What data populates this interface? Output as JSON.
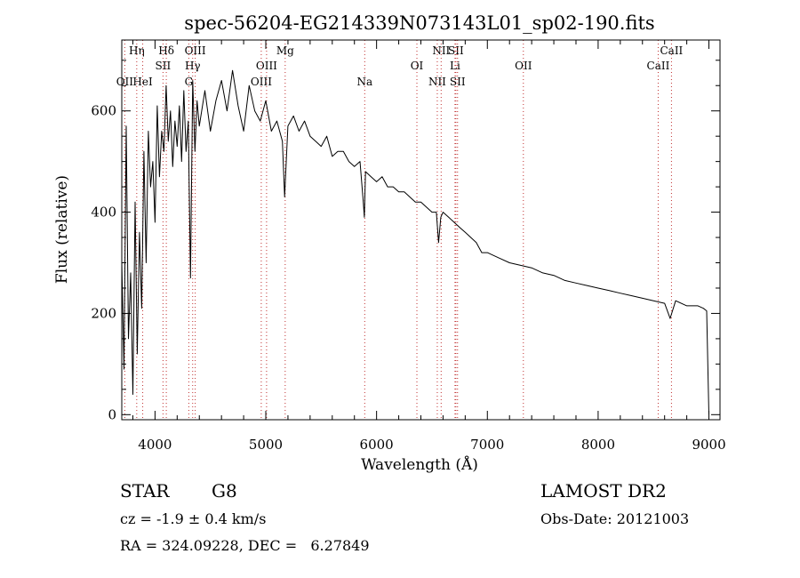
{
  "chart_data": {
    "type": "line",
    "title": "spec-56204-EG214339N073143L01_sp02-190.fits",
    "xlabel": "Wavelength (Å)",
    "ylabel": "Flux (relative)",
    "xlim": [
      3700,
      9100
    ],
    "ylim": [
      -10,
      740
    ],
    "xticks": [
      4000,
      5000,
      6000,
      7000,
      8000,
      9000
    ],
    "yticks": [
      0,
      200,
      400,
      600
    ],
    "grid": false,
    "series": [
      {
        "x": [
          3700,
          3720,
          3740,
          3760,
          3780,
          3800,
          3820,
          3840,
          3860,
          3880,
          3900,
          3920,
          3940,
          3960,
          3980,
          4000,
          4020,
          4040,
          4060,
          4080,
          4100,
          4120,
          4140,
          4160,
          4180,
          4200,
          4220,
          4240,
          4260,
          4280,
          4300,
          4320,
          4340,
          4360,
          4380,
          4400,
          4450,
          4500,
          4550,
          4600,
          4650,
          4700,
          4750,
          4800,
          4850,
          4900,
          4950,
          5000,
          5050,
          5100,
          5150,
          5170,
          5180,
          5200,
          5250,
          5300,
          5350,
          5400,
          5450,
          5500,
          5550,
          5600,
          5650,
          5700,
          5750,
          5800,
          5850,
          5880,
          5890,
          5900,
          5950,
          6000,
          6050,
          6100,
          6150,
          6200,
          6250,
          6300,
          6350,
          6400,
          6450,
          6500,
          6540,
          6560,
          6580,
          6600,
          6650,
          6700,
          6750,
          6800,
          6850,
          6900,
          6950,
          7000,
          7100,
          7200,
          7300,
          7400,
          7500,
          7600,
          7700,
          7800,
          7900,
          8000,
          8100,
          8200,
          8300,
          8400,
          8500,
          8600,
          8650,
          8700,
          8800,
          8900,
          8950,
          8980,
          9000
        ],
        "values": [
          300,
          90,
          570,
          150,
          280,
          40,
          420,
          120,
          360,
          210,
          520,
          300,
          560,
          450,
          500,
          380,
          610,
          470,
          560,
          520,
          650,
          540,
          600,
          490,
          580,
          530,
          610,
          500,
          640,
          520,
          580,
          270,
          660,
          520,
          620,
          570,
          640,
          560,
          620,
          660,
          600,
          680,
          610,
          560,
          650,
          600,
          580,
          620,
          560,
          580,
          540,
          430,
          480,
          570,
          590,
          560,
          580,
          550,
          540,
          530,
          550,
          510,
          520,
          520,
          500,
          490,
          500,
          420,
          390,
          480,
          470,
          460,
          470,
          450,
          450,
          440,
          440,
          430,
          420,
          420,
          410,
          400,
          400,
          340,
          390,
          400,
          390,
          380,
          370,
          360,
          350,
          340,
          320,
          320,
          310,
          300,
          295,
          290,
          280,
          275,
          265,
          260,
          255,
          250,
          245,
          240,
          235,
          230,
          225,
          220,
          190,
          225,
          215,
          215,
          210,
          205,
          0
        ]
      }
    ],
    "lines": [
      {
        "name": "Hη",
        "x": 3835,
        "row": 1
      },
      {
        "name": "OII",
        "x": 3727,
        "row": 3
      },
      {
        "name": "HeI",
        "x": 3889,
        "row": 3
      },
      {
        "name": "Hδ",
        "x": 4102,
        "row": 1
      },
      {
        "name": "SII",
        "x": 4072,
        "row": 2
      },
      {
        "name": "OIII",
        "x": 4363,
        "row": 1
      },
      {
        "name": "Hγ",
        "x": 4340,
        "row": 2
      },
      {
        "name": "G",
        "x": 4305,
        "row": 3
      },
      {
        "name": "Mg",
        "x": 5175,
        "row": 1
      },
      {
        "name": "OIII",
        "x": 5007,
        "row": 2
      },
      {
        "name": "OIII",
        "x": 4959,
        "row": 3
      },
      {
        "name": "Na",
        "x": 5893,
        "row": 3
      },
      {
        "name": "OI",
        "x": 6364,
        "row": 2
      },
      {
        "name": "NII",
        "x": 6583,
        "row": 1
      },
      {
        "name": "SII",
        "x": 6716,
        "row": 1
      },
      {
        "name": "Li",
        "x": 6708,
        "row": 2
      },
      {
        "name": "NII",
        "x": 6548,
        "row": 3
      },
      {
        "name": "SII",
        "x": 6731,
        "row": 3
      },
      {
        "name": "OII",
        "x": 7325,
        "row": 2
      },
      {
        "name": "CaII",
        "x": 8662,
        "row": 1
      },
      {
        "name": "CaII",
        "x": 8542,
        "row": 2
      }
    ]
  },
  "footer": {
    "object": "STAR",
    "subclass": "G8",
    "survey": "LAMOST DR2",
    "cz": "cz = -1.9 ± 0.4 km/s",
    "obs_date": "Obs-Date: 20121003",
    "coords": "RA = 324.09228, DEC =   6.27849"
  }
}
